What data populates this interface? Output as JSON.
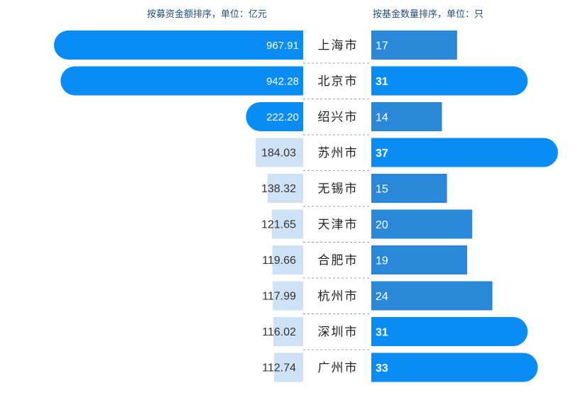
{
  "header": {
    "left": "按募资金额排序，单位：亿元",
    "right": "按基金数量排序，单位：只"
  },
  "colors": {
    "highlight": "#0a8cf5",
    "count_bar": "#2b88d8",
    "light_bar": "#cfe2f5",
    "divider": "#9aa0a6"
  },
  "chart_data": {
    "type": "bar",
    "categories": [
      "上海市",
      "北京市",
      "绍兴市",
      "苏州市",
      "无锡市",
      "天津市",
      "合肥市",
      "杭州市",
      "深圳市",
      "广州市"
    ],
    "series": [
      {
        "values": [
          967.91,
          942.28,
          222.2,
          184.03,
          138.32,
          121.65,
          119.66,
          117.99,
          116.02,
          112.74
        ],
        "labels": [
          "967.91",
          "942.28",
          "222.20",
          "184.03",
          "138.32",
          "121.65",
          "119.66",
          "117.99",
          "116.02",
          "112.74"
        ],
        "highlighted": [
          true,
          true,
          true,
          false,
          false,
          false,
          false,
          false,
          false,
          false
        ]
      },
      {
        "values": [
          17,
          31,
          14,
          37,
          15,
          20,
          19,
          24,
          31,
          33
        ],
        "labels": [
          "17",
          "31",
          "14",
          "37",
          "15",
          "20",
          "19",
          "24",
          "31",
          "33"
        ],
        "highlighted": [
          false,
          true,
          false,
          true,
          false,
          false,
          false,
          false,
          true,
          true
        ]
      }
    ],
    "title": "",
    "xlabel": "",
    "ylabel": ""
  }
}
